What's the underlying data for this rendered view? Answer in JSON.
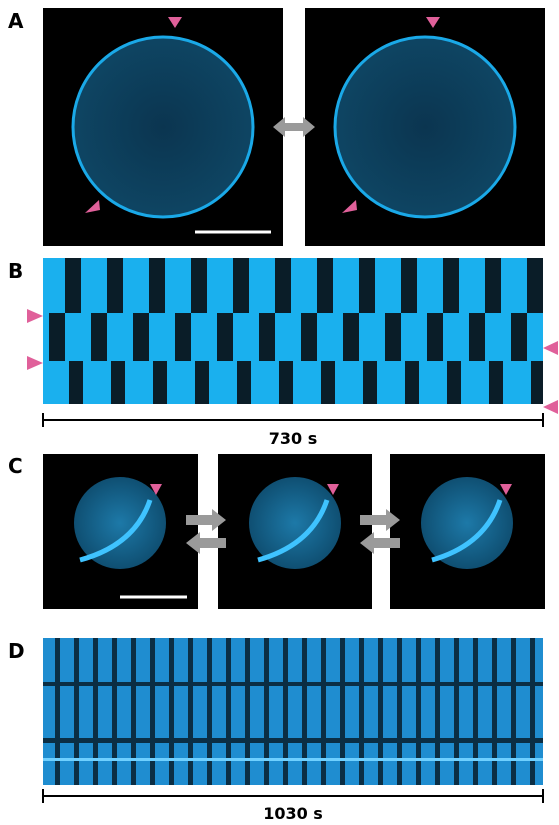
{
  "panels": [
    {
      "label": "A"
    },
    {
      "label": "B",
      "scale": "730 s"
    },
    {
      "label": "C"
    },
    {
      "label": "D",
      "scale": "1030 s"
    }
  ]
}
